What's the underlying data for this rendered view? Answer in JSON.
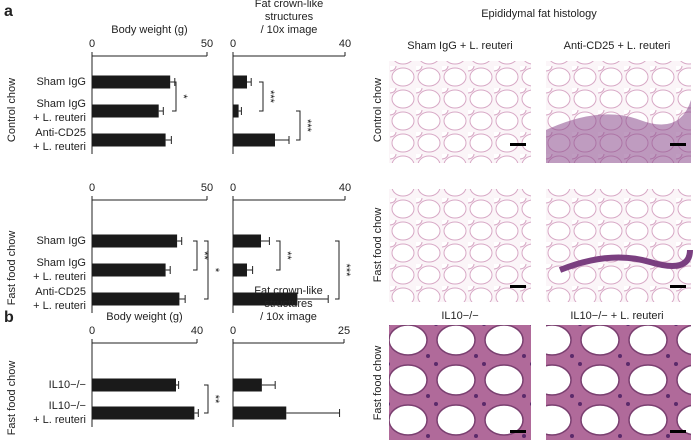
{
  "figure": {
    "panel_labels": [
      "a",
      "b"
    ],
    "row_labels": [
      "Control chow",
      "Fast food chow",
      "Fast food chow"
    ],
    "histology_title": "Epididymal fat histology",
    "histology_columns": [
      "Sham IgG + L. reuteri",
      "Anti-CD25 + L. reuteri",
      "IL10−/−",
      "IL10−/− + L. reuteri"
    ],
    "histology_rows": [
      "Control chow",
      "Fast food chow",
      "Fast food chow"
    ]
  },
  "chart_data": [
    {
      "type": "bar",
      "orientation": "horizontal",
      "title": [
        "Body weight (g)"
      ],
      "categories": [
        [
          "Sham IgG"
        ],
        [
          "Sham IgG",
          "+ L. reuteri"
        ],
        [
          "Anti-CD25",
          "+ L. reuteri"
        ]
      ],
      "values": [
        34,
        29,
        32
      ],
      "errors": [
        2,
        2,
        2.5
      ],
      "color": "#1a1a1a",
      "xlim": [
        0,
        50
      ],
      "xticks": [
        0,
        50
      ],
      "significance": [
        {
          "pair": [
            0,
            1
          ],
          "label": "*"
        }
      ]
    },
    {
      "type": "bar",
      "orientation": "horizontal",
      "title": [
        "Fat crown-like",
        "structures",
        "/ 10x image"
      ],
      "values": [
        5,
        2,
        15
      ],
      "errors": [
        1.5,
        1,
        5
      ],
      "color": "#1a1a1a",
      "xlim": [
        0,
        40
      ],
      "xticks": [
        0,
        40
      ],
      "significance": [
        {
          "pair": [
            0,
            1
          ],
          "label": "***"
        },
        {
          "pair": [
            1,
            2
          ],
          "label": "***"
        }
      ]
    },
    {
      "type": "bar",
      "orientation": "horizontal",
      "categories": [
        [
          "Sham IgG"
        ],
        [
          "Sham IgG",
          "+ L. reuteri"
        ],
        [
          "Anti-CD25",
          "+ L. reuteri"
        ]
      ],
      "values": [
        37,
        32,
        38
      ],
      "errors": [
        2,
        2,
        2.5
      ],
      "color": "#1a1a1a",
      "xlim": [
        0,
        50
      ],
      "xticks": [
        0,
        50
      ],
      "significance": [
        {
          "pair": [
            0,
            1
          ],
          "label": "**"
        },
        {
          "pair": [
            0,
            2
          ],
          "label": "*"
        }
      ]
    },
    {
      "type": "bar",
      "orientation": "horizontal",
      "values": [
        10,
        5,
        23
      ],
      "errors": [
        3,
        2,
        11
      ],
      "color": "#1a1a1a",
      "xlim": [
        0,
        40
      ],
      "xticks": [
        0,
        40
      ],
      "significance": [
        {
          "pair": [
            0,
            1
          ],
          "label": "**"
        },
        {
          "pair": [
            0,
            2
          ],
          "label": "***"
        }
      ]
    },
    {
      "type": "bar",
      "orientation": "horizontal",
      "title": [
        "Body weight (g)"
      ],
      "categories": [
        [
          "IL10−/−"
        ],
        [
          "IL10−/−",
          "+ L. reuteri"
        ]
      ],
      "values": [
        32,
        39
      ],
      "errors": [
        1,
        1.5
      ],
      "color": "#1a1a1a",
      "xlim": [
        0,
        40
      ],
      "xticks": [
        0,
        40
      ],
      "significance": [
        {
          "pair": [
            0,
            1
          ],
          "label": "**"
        }
      ]
    },
    {
      "type": "bar",
      "orientation": "horizontal",
      "title": [
        "Fat crown-like",
        "structures",
        "/ 10x image"
      ],
      "values": [
        6.5,
        12
      ],
      "errors": [
        3,
        12
      ],
      "color": "#1a1a1a",
      "xlim": [
        0,
        25
      ],
      "xticks": [
        0,
        25
      ],
      "significance": []
    }
  ]
}
